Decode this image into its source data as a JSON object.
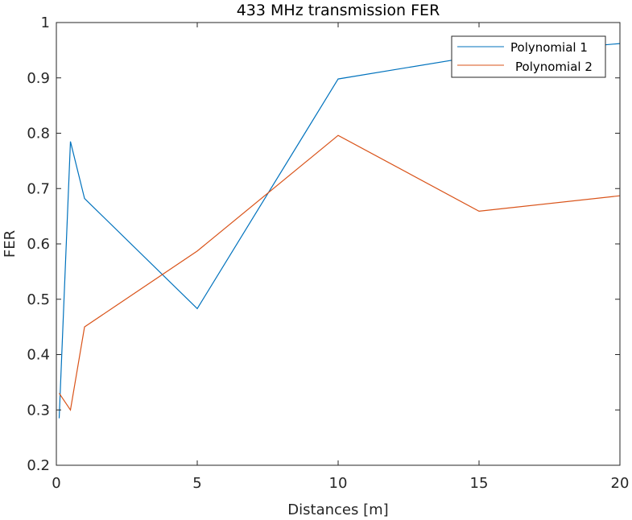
{
  "chart_data": {
    "type": "line",
    "title": "433 MHz transmission FER",
    "xlabel": "Distances [m]",
    "ylabel": "FER",
    "xlim": [
      0,
      20
    ],
    "ylim": [
      0.2,
      1
    ],
    "xticks": [
      0,
      5,
      10,
      15,
      20
    ],
    "yticks": [
      0.2,
      0.3,
      0.4,
      0.5,
      0.6,
      0.7,
      0.8,
      0.9,
      1
    ],
    "xtick_labels": [
      "0",
      "5",
      "10",
      "15",
      "20"
    ],
    "ytick_labels": [
      "0.2",
      "0.3",
      "0.4",
      "0.5",
      "0.6",
      "0.7",
      "0.8",
      "0.9",
      "1"
    ],
    "grid": false,
    "legend_position": "top-right",
    "series": [
      {
        "name": "Polynomial 1",
        "color": "#0072BD",
        "x": [
          0.1,
          0.5,
          1,
          5,
          10,
          15,
          20
        ],
        "y": [
          0.285,
          0.785,
          0.682,
          0.483,
          0.898,
          0.94,
          0.962
        ]
      },
      {
        "name": "Polynomial 2",
        "color": "#D95319",
        "x": [
          0.1,
          0.5,
          1,
          5,
          10,
          15,
          20
        ],
        "y": [
          0.33,
          0.3,
          0.45,
          0.587,
          0.796,
          0.659,
          0.687
        ]
      }
    ]
  }
}
